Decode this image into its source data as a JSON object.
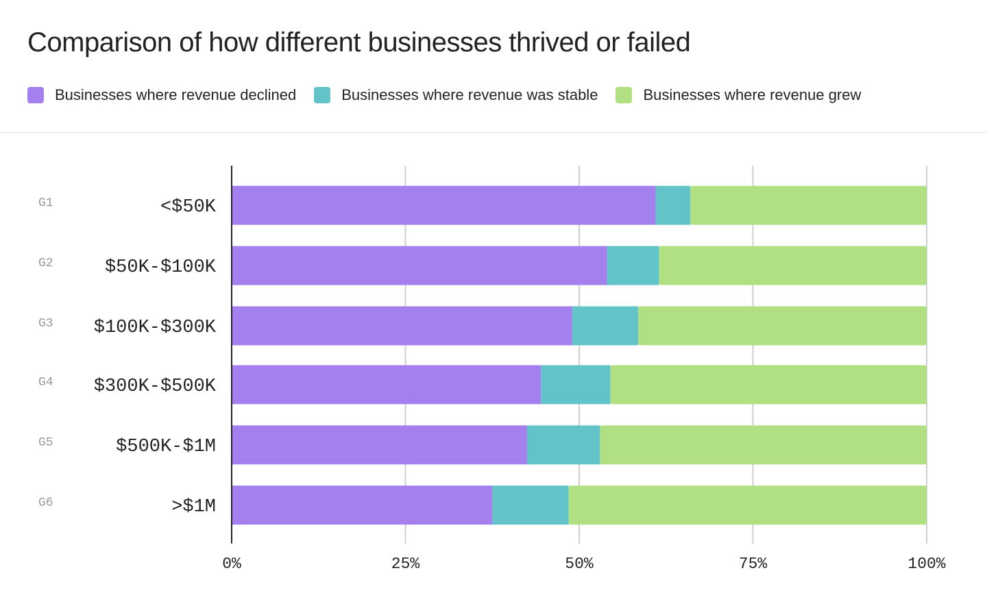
{
  "chart_data": {
    "type": "bar",
    "orientation": "horizontal",
    "stacked": true,
    "title": "Comparison of how different businesses thrived or failed",
    "group_ids": [
      "G1",
      "G2",
      "G3",
      "G4",
      "G5",
      "G6"
    ],
    "categories": [
      "<$50K",
      "$50K-$100K",
      "$100K-$300K",
      "$300K-$500K",
      "$500K-$1M",
      ">$1M"
    ],
    "series": [
      {
        "name": "Businesses where revenue declined",
        "color": "#a480ee",
        "values": [
          61,
          54,
          49,
          44.5,
          42.5,
          37.5
        ]
      },
      {
        "name": "Businesses where revenue was stable",
        "color": "#62c3c9",
        "values": [
          5,
          7.5,
          9.5,
          10,
          10.5,
          11
        ]
      },
      {
        "name": "Businesses where revenue grew",
        "color": "#b1e083",
        "values": [
          34,
          38.5,
          41.5,
          45.5,
          47,
          51.5
        ]
      }
    ],
    "xlim": [
      0,
      100
    ],
    "xticks": [
      "0%",
      "25%",
      "50%",
      "75%",
      "100%"
    ],
    "xlabel": "",
    "ylabel": "",
    "grid": true,
    "legend_position": "top"
  }
}
